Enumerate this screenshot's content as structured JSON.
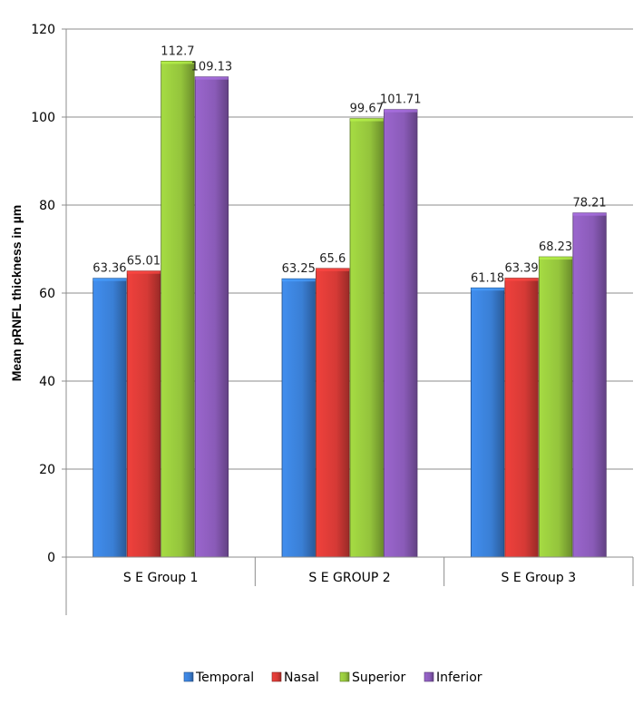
{
  "chart_data": {
    "type": "bar",
    "title": "",
    "xlabel": "",
    "ylabel": "Mean pRNFL thickness in µm",
    "ylim": [
      0,
      120
    ],
    "yticks": [
      0,
      20,
      40,
      60,
      80,
      100,
      120
    ],
    "grid": true,
    "legend_position": "bottom",
    "categories": [
      "S E Group 1",
      "S E GROUP 2",
      "S E Group 3"
    ],
    "series": [
      {
        "name": "Temporal",
        "color": "#3A7FD5",
        "values": [
          63.36,
          63.25,
          61.18
        ],
        "labels": [
          "63.36",
          "63.25",
          "61.18"
        ]
      },
      {
        "name": "Nasal",
        "color": "#D63A36",
        "values": [
          65.01,
          65.6,
          63.39
        ],
        "labels": [
          "65.01",
          "65.6",
          "63.39"
        ]
      },
      {
        "name": "Superior",
        "color": "#94C43C",
        "values": [
          112.7,
          99.67,
          68.23
        ],
        "labels": [
          "112.7",
          "99.67",
          "68.23"
        ]
      },
      {
        "name": "Inferior",
        "color": "#8A5BB8",
        "values": [
          109.13,
          101.71,
          78.21
        ],
        "labels": [
          "109.13",
          "101.71",
          "78.21"
        ]
      }
    ]
  }
}
